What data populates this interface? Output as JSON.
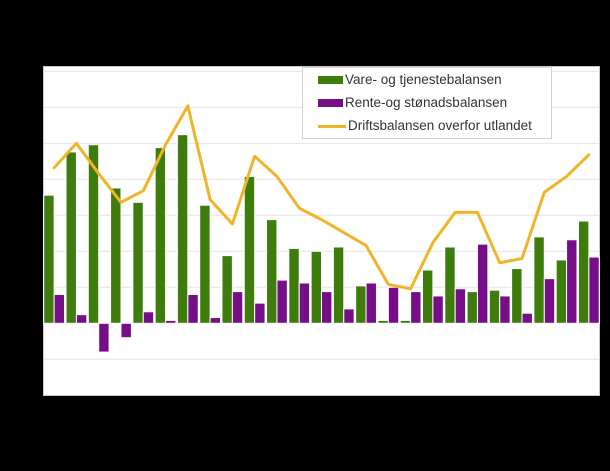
{
  "page": {
    "background_color": "#000000"
  },
  "plot": {
    "background_color": "#ffffff",
    "border_color": "#c9c9c9",
    "grid_color": "#e4e4e4"
  },
  "legend": {
    "items": [
      {
        "label": "Vare- og tjenestebalansen",
        "marker": "rect",
        "color": "#3e7c0c"
      },
      {
        "label": "Rente-og stønadsbalansen",
        "marker": "rect",
        "color": "#760e87"
      },
      {
        "label": "Driftsbalansen overfor utlandet",
        "marker": "line",
        "color": "#f0b429"
      }
    ]
  },
  "chart_data": {
    "type": "bar",
    "subtype": "grouped-columns-with-line-overlay",
    "title": "",
    "xlabel": "",
    "ylabel": "",
    "x": [
      1,
      2,
      3,
      4,
      5,
      6,
      7,
      8,
      9,
      10,
      11,
      12,
      13,
      14,
      15,
      16,
      17,
      18,
      19,
      20,
      21,
      22,
      23,
      24,
      25
    ],
    "x_tick_labels_visible": false,
    "y_tick_labels_visible": false,
    "grid": true,
    "gridline_step": 25,
    "ylim": [
      -50,
      178
    ],
    "zero_baseline": 0,
    "legend_position": "top-right-inside",
    "series": [
      {
        "name": "Vare- og tjenestebalansen",
        "render": "column",
        "color": "#3e7c0c",
        "values": [
          89,
          119,
          124,
          94,
          84,
          122,
          131,
          82,
          47,
          102,
          72,
          52,
          50,
          53,
          26,
          2,
          2,
          37,
          53,
          22,
          23,
          38,
          60,
          44,
          71
        ]
      },
      {
        "name": "Rente-og stønadsbalansen",
        "render": "column",
        "color": "#760e87",
        "values": [
          20,
          6,
          -20,
          -10,
          8,
          2,
          20,
          4,
          22,
          14,
          30,
          28,
          22,
          10,
          28,
          25,
          22,
          19,
          24,
          55,
          19,
          7,
          31,
          58,
          46
        ]
      },
      {
        "name": "Driftsbalansen overfor utlandet",
        "render": "line",
        "color": "#f0b429",
        "line_width": 3,
        "values": [
          108,
          125,
          104,
          84,
          92,
          124,
          151,
          86,
          69,
          116,
          102,
          80,
          72,
          63,
          54,
          27,
          24,
          56,
          77,
          77,
          42,
          45,
          91,
          102,
          117
        ]
      }
    ]
  }
}
